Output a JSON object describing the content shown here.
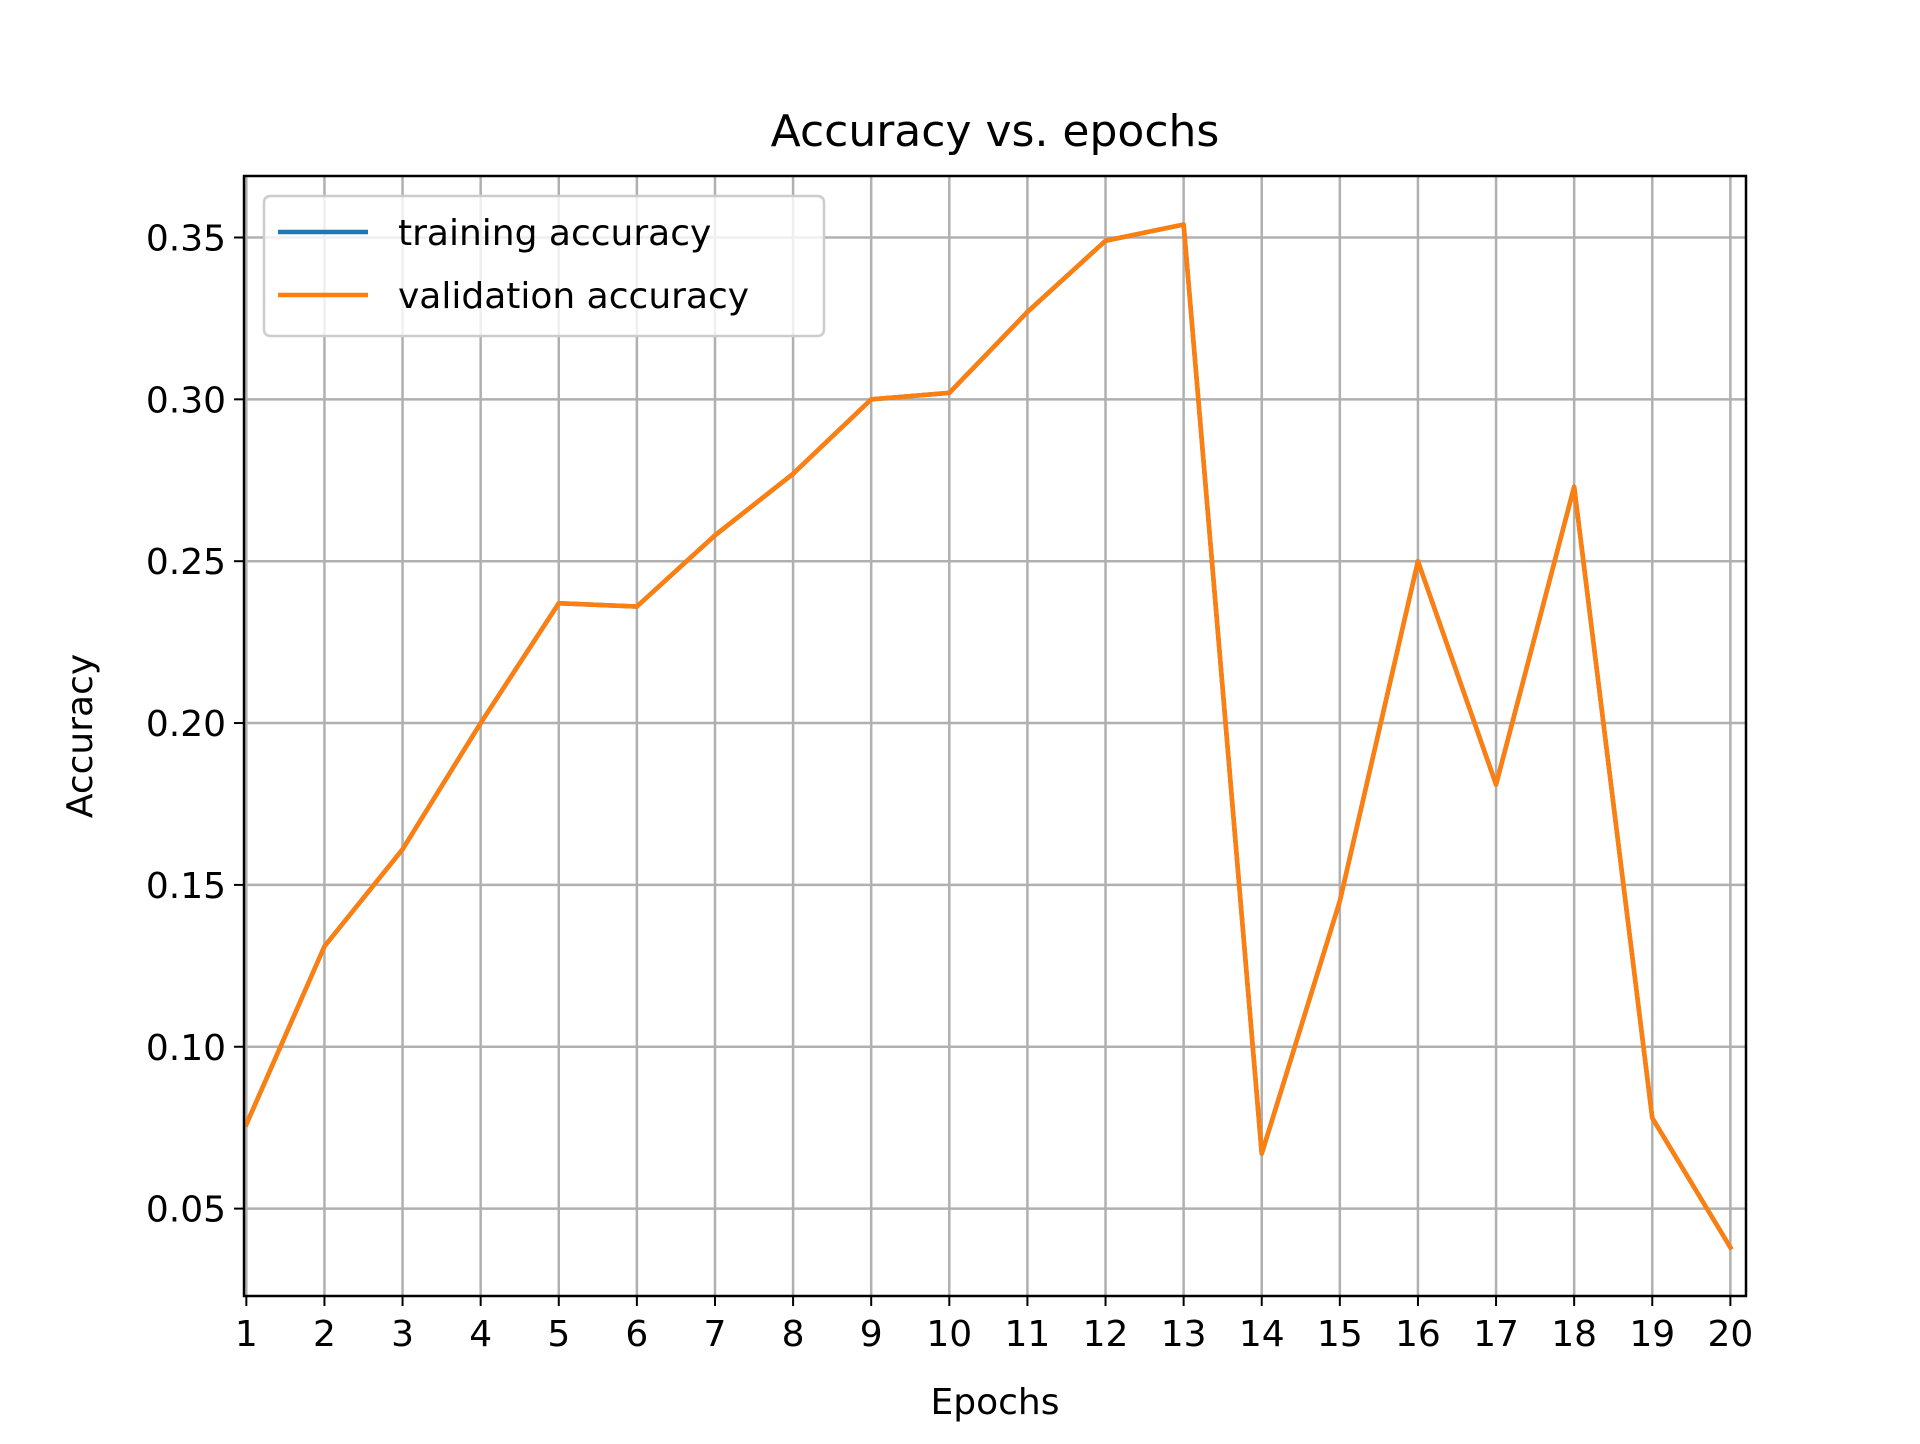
{
  "chart_data": {
    "type": "line",
    "title": "Accuracy vs. epochs",
    "xlabel": "Epochs",
    "ylabel": "Accuracy",
    "x": [
      1,
      2,
      3,
      4,
      5,
      6,
      7,
      8,
      9,
      10,
      11,
      12,
      13,
      14,
      15,
      16,
      17,
      18,
      19,
      20
    ],
    "xlim": [
      0.97,
      20.2
    ],
    "ylim": [
      0.023,
      0.369
    ],
    "x_ticks": [
      1,
      2,
      3,
      4,
      5,
      6,
      7,
      8,
      9,
      10,
      11,
      12,
      13,
      14,
      15,
      16,
      17,
      18,
      19,
      20
    ],
    "y_ticks": [
      0.05,
      0.1,
      0.15,
      0.2,
      0.25,
      0.3,
      0.35
    ],
    "y_tick_labels": [
      "0.05",
      "0.10",
      "0.15",
      "0.20",
      "0.25",
      "0.30",
      "0.35"
    ],
    "grid": true,
    "legend_position": "top-left",
    "series": [
      {
        "name": "training accuracy",
        "color": "#1f77b4",
        "values": [
          0.076,
          0.131,
          0.161,
          0.2,
          0.237,
          0.236,
          0.258,
          0.277,
          0.3,
          0.302,
          0.327,
          0.349,
          0.354,
          0.067,
          0.145,
          0.25,
          0.181,
          0.273,
          0.078,
          0.038
        ]
      },
      {
        "name": "validation accuracy",
        "color": "#ff7f0e",
        "values": [
          0.076,
          0.131,
          0.161,
          0.2,
          0.237,
          0.236,
          0.258,
          0.277,
          0.3,
          0.302,
          0.327,
          0.349,
          0.354,
          0.067,
          0.145,
          0.25,
          0.181,
          0.273,
          0.078,
          0.038
        ]
      }
    ]
  }
}
